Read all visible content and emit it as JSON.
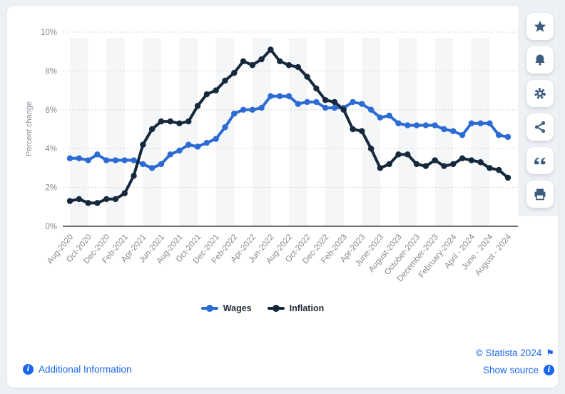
{
  "chart_data": {
    "type": "line",
    "title": "",
    "xlabel": "",
    "ylabel": "Percent change",
    "ylim": [
      0,
      10
    ],
    "yticks": [
      "0%",
      "2%",
      "4%",
      "6%",
      "8%",
      "10%"
    ],
    "grid": "horizontal-dotted",
    "legend_position": "bottom-center",
    "background_stripes": "alternating vertical light-gray bands, one per two months",
    "categories": [
      "Aug 2020",
      "Sep 2020",
      "Oct 2020",
      "Nov 2020",
      "Dec 2020",
      "Jan 2021",
      "Feb 2021",
      "Mar 2021",
      "Apr 2021",
      "May 2021",
      "Jun 2021",
      "Jul 2021",
      "Aug 2021",
      "Sep 2021",
      "Oct 2021",
      "Nov 2021",
      "Dec 2021",
      "Jan 2022",
      "Feb 2022",
      "Mar 2022",
      "Apr 2022",
      "May 2022",
      "Jun 2022",
      "Jul 2022",
      "Aug 2022",
      "Sep 2022",
      "Oct 2022",
      "Nov 2022",
      "Dec 2022",
      "Jan 2023",
      "Feb 2023",
      "Mar 2023",
      "Apr 2023",
      "May 2023",
      "Jun 2023",
      "Jul 2023",
      "Aug 2023",
      "Sep 2023",
      "Oct 2023",
      "Nov 2023",
      "Dec 2023",
      "Jan 2024",
      "Feb 2024",
      "Mar 2024",
      "Apr 2024",
      "May 2024",
      "Jun 2024",
      "Jul 2024",
      "Aug 2024"
    ],
    "x_tick_labels": [
      "Aug-2020",
      "Oct-2020",
      "Dec-2020",
      "Feb-2021",
      "Apr-2021",
      "Jun-2021",
      "Aug-2021",
      "Oct-2021",
      "Dec-2021",
      "Feb-2022",
      "Apr-2022",
      "Jun-2022",
      "Aug-2022",
      "Oct-2022",
      "Dec-2022",
      "Feb-2023",
      "Apr-2023",
      "June-2023",
      "August-2023",
      "October-2023",
      "December-2023",
      "February-2024",
      "April - 2024",
      "June - 2024",
      "August - 2024"
    ],
    "x_tick_every_n_points": 2,
    "series": [
      {
        "name": "Wages",
        "color": "#2c6bd4",
        "values": [
          3.5,
          3.5,
          3.4,
          3.7,
          3.4,
          3.4,
          3.4,
          3.4,
          3.2,
          3.0,
          3.2,
          3.7,
          3.9,
          4.2,
          4.1,
          4.3,
          4.5,
          5.1,
          5.8,
          6.0,
          6.0,
          6.1,
          6.7,
          6.7,
          6.7,
          6.3,
          6.4,
          6.4,
          6.1,
          6.1,
          6.1,
          6.4,
          6.3,
          6.0,
          5.6,
          5.7,
          5.3,
          5.2,
          5.2,
          5.2,
          5.2,
          5.0,
          4.9,
          4.7,
          5.3,
          5.3,
          5.3,
          4.7,
          4.6
        ]
      },
      {
        "name": "Inflation",
        "color": "#16283c",
        "values": [
          1.3,
          1.4,
          1.2,
          1.2,
          1.4,
          1.4,
          1.7,
          2.6,
          4.2,
          5.0,
          5.4,
          5.4,
          5.3,
          5.4,
          6.2,
          6.8,
          7.0,
          7.5,
          7.9,
          8.5,
          8.3,
          8.6,
          9.1,
          8.5,
          8.3,
          8.2,
          7.7,
          7.1,
          6.5,
          6.4,
          6.0,
          5.0,
          4.9,
          4.0,
          3.0,
          3.2,
          3.7,
          3.7,
          3.2,
          3.1,
          3.4,
          3.1,
          3.2,
          3.5,
          3.4,
          3.3,
          3.0,
          2.9,
          2.5
        ]
      }
    ]
  },
  "sidebar": {
    "buttons": [
      {
        "name": "favorite",
        "icon": "star-icon"
      },
      {
        "name": "alerts",
        "icon": "bell-icon"
      },
      {
        "name": "settings",
        "icon": "gear-icon"
      },
      {
        "name": "share",
        "icon": "share-icon"
      },
      {
        "name": "cite",
        "icon": "quote-icon"
      },
      {
        "name": "print",
        "icon": "printer-icon"
      }
    ]
  },
  "footer": {
    "additional_info_label": "Additional Information",
    "copyright_label": "© Statista 2024",
    "show_source_label": "Show source"
  },
  "colors": {
    "page_background": "#edf0f4",
    "card_background": "#ffffff",
    "link_blue": "#1a66f0",
    "sidebar_icon": "#3d5c80",
    "axis_text": "#85898f",
    "gridline": "#c9cacc",
    "baseline": "#3f4146",
    "stripe": "#f5f6f8",
    "wages_series": "#2c6bd4",
    "inflation_series": "#16283c"
  }
}
